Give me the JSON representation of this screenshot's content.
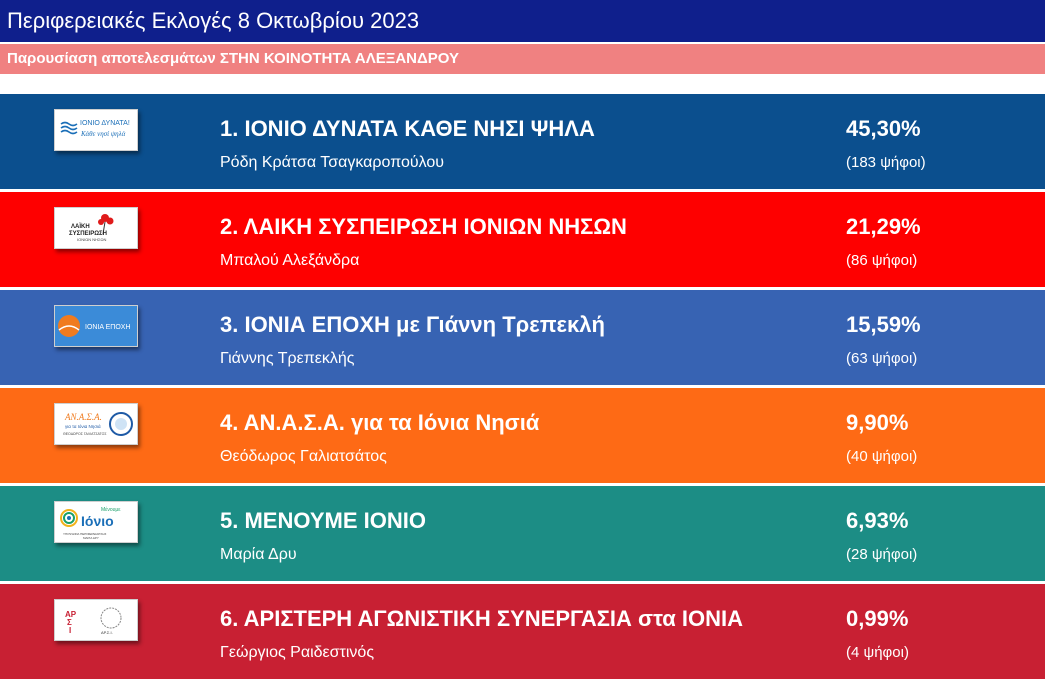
{
  "header": {
    "title": "Περιφερειακές Εκλογές 8 Οκτωβρίου 2023",
    "subtitle": "Παρουσίαση αποτελεσμάτων ΣΤΗΝ ΚΟΙΝΟΤΗΤΑ ΑΛΕΞΑΝΔΡΟΥ"
  },
  "colors": {
    "header_bg": "#0f1f8c",
    "subheader_bg": "#f08181"
  },
  "results": [
    {
      "name": "1. ΙΟΝΙΟ ΔΥΝΑΤΑ ΚΑΘΕ ΝΗΣΙ ΨΗΛΑ",
      "leader": "Ρόδη Κράτσα Τσαγκαροπούλου",
      "percent": "45,30%",
      "votes": "(183 ψήφοι)",
      "color": "#0b4f8e",
      "logo_text": [
        "ΙΟΝΙΟ ΔΥΝΑΤΑ!",
        "Κάθε νησί ψηλά"
      ],
      "logo_icon": "waves-logo"
    },
    {
      "name": "2. ΛΑΙΚΗ ΣΥΣΠΕΙΡΩΣΗ ΙΟΝΙΩΝ ΝΗΣΩΝ",
      "leader": "Μπαλού Αλεξάνδρα",
      "percent": "21,29%",
      "votes": "(86 ψήφοι)",
      "color": "#fe0000",
      "logo_text": [
        "ΛΑΪΚΗ",
        "ΣΥΣΠΕΙΡΩΣΗ",
        "ΙΟΝΙΩΝ ΝΗΣΩΝ"
      ],
      "logo_icon": "flower-logo"
    },
    {
      "name": "3. ΙΟΝΙΑ ΕΠΟΧΗ με Γιάννη Τρεπεκλή",
      "leader": "Γιάννης Τρεπεκλής",
      "percent": "15,59%",
      "votes": "(63 ψήφοι)",
      "color": "#3763b3",
      "logo_text": [
        "ΙΟΝΙΑ ΕΠΟΧΗ"
      ],
      "logo_icon": "sunrise-logo"
    },
    {
      "name": "4. ΑΝ.Α.Σ.Α. για τα Ιόνια Νησιά",
      "leader": "Θεόδωρος Γαλιατσάτος",
      "percent": "9,90%",
      "votes": "(40 ψήφοι)",
      "color": "#fe6a15",
      "logo_text": [
        "ΑΝ.Α.Σ.Α.",
        "για τα Ιόνια Νησιά",
        "ΘΕΟΔΩΡΟΣ ΓΑΛΙΑΤΣΑΤΟΣ"
      ],
      "logo_icon": "circle-logo"
    },
    {
      "name": "5. ΜΕΝΟΥΜΕ ΙΟΝΙΟ",
      "leader": "Μαρία Δρυ",
      "percent": "6,93%",
      "votes": "(28 ψήφοι)",
      "color": "#1c8d85",
      "logo_text": [
        "Μένουμε",
        "Ιόνιο",
        "ΥΠΟΨΗΦΙΑ ΠΕΡΙΦΕΡΕΙΑΡΧΗΣ",
        "ΜΑΡΙΑ ΔΡΥ"
      ],
      "logo_icon": "rings-logo"
    },
    {
      "name": "6. ΑΡΙΣΤΕΡΗ ΑΓΩΝΙΣΤΙΚΗ ΣΥΝΕΡΓΑΣΙΑ στα ΙΟΝΙΑ",
      "leader": "Γεώργιος Ραιδεστινός",
      "percent": "0,99%",
      "votes": "(4 ψήφοι)",
      "color": "#c82033",
      "logo_text": [
        "ΑΡ",
        "Σ",
        "Ι",
        "ΑΡ.Σ.Ι."
      ],
      "logo_icon": "ars-logo"
    }
  ]
}
